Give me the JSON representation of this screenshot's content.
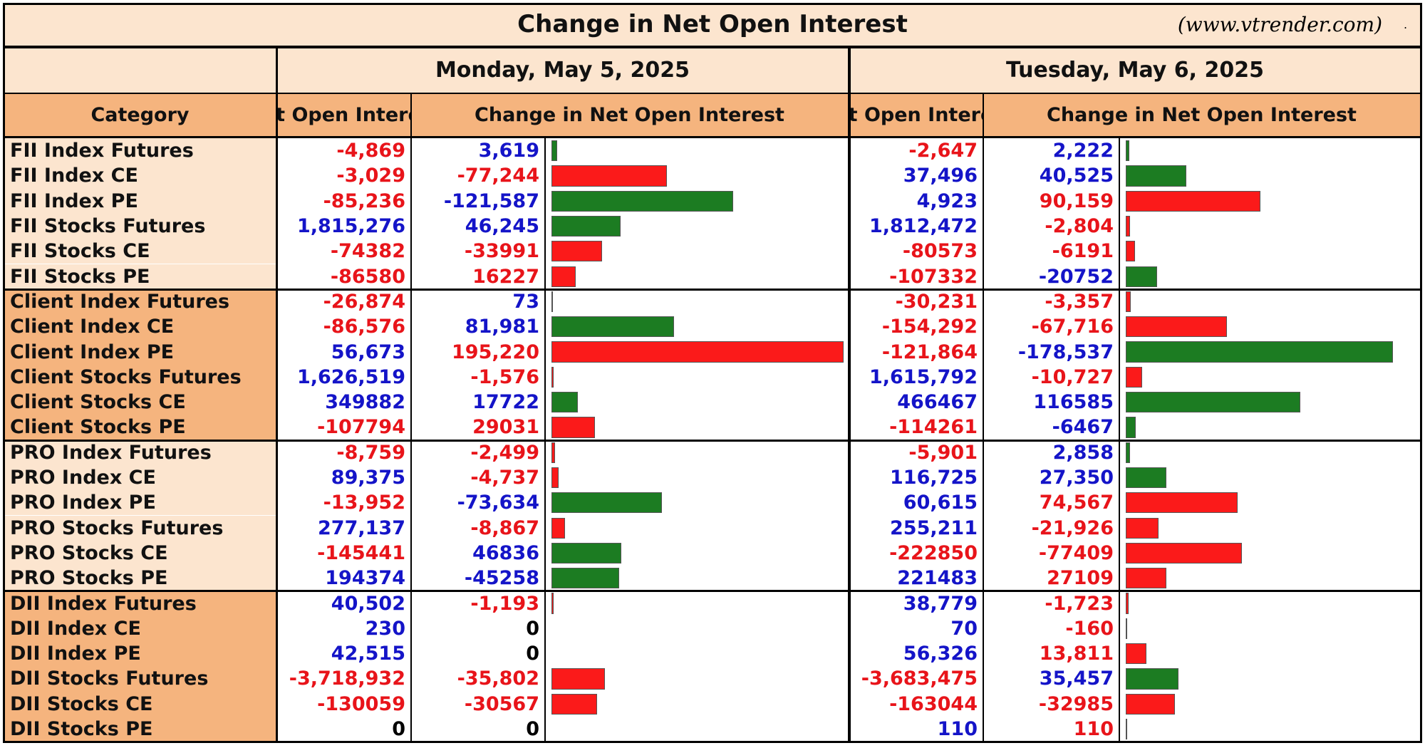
{
  "header": {
    "title": "Change in Net Open Interest",
    "source": "(www.vtrender.com)",
    "suffix": "."
  },
  "days": [
    "Monday, May 5, 2025",
    "Tuesday, May 6, 2025"
  ],
  "columns": {
    "category": "Category",
    "oi": "Net Open Interest",
    "change": "Change in Net Open Interest"
  },
  "groups": [
    {
      "shade": "light",
      "rows": [
        {
          "category": "FII Index Futures",
          "days": [
            {
              "oi": "-4,869",
              "oi_color": "red",
              "change": {
                "value": 3619,
                "label": "3,619"
              },
              "color": "blue",
              "bar": "green"
            },
            {
              "oi": "-2,647",
              "oi_color": "red",
              "change": {
                "value": 2222,
                "label": "2,222"
              },
              "color": "blue",
              "bar": "green"
            }
          ]
        },
        {
          "category": "FII Index CE",
          "days": [
            {
              "oi": "-3,029",
              "oi_color": "red",
              "change": {
                "value": -77244,
                "label": "-77,244"
              },
              "color": "red",
              "bar": "red"
            },
            {
              "oi": "37,496",
              "oi_color": "blue",
              "change": {
                "value": 40525,
                "label": "40,525"
              },
              "color": "blue",
              "bar": "green"
            }
          ]
        },
        {
          "category": "FII Index PE",
          "days": [
            {
              "oi": "-85,236",
              "oi_color": "red",
              "change": {
                "value": -121587,
                "label": "-121,587"
              },
              "color": "blue",
              "bar": "green"
            },
            {
              "oi": "4,923",
              "oi_color": "blue",
              "change": {
                "value": 90159,
                "label": "90,159"
              },
              "color": "red",
              "bar": "red"
            }
          ]
        },
        {
          "category": "FII Stocks Futures",
          "days": [
            {
              "oi": "1,815,276",
              "oi_color": "blue",
              "change": {
                "value": 46245,
                "label": "46,245"
              },
              "color": "blue",
              "bar": "green"
            },
            {
              "oi": "1,812,472",
              "oi_color": "blue",
              "change": {
                "value": -2804,
                "label": "-2,804"
              },
              "color": "red",
              "bar": "red"
            }
          ]
        },
        {
          "category": "FII Stocks CE",
          "days": [
            {
              "oi": "-74382",
              "oi_color": "red",
              "change": {
                "value": -33991,
                "label": "-33991"
              },
              "color": "red",
              "bar": "red"
            },
            {
              "oi": "-80573",
              "oi_color": "red",
              "change": {
                "value": -6191,
                "label": "-6191"
              },
              "color": "red",
              "bar": "red"
            }
          ]
        },
        {
          "category": "FII Stocks PE",
          "days": [
            {
              "oi": "-86580",
              "oi_color": "red",
              "change": {
                "value": 16227,
                "label": "16227"
              },
              "color": "red",
              "bar": "red"
            },
            {
              "oi": "-107332",
              "oi_color": "red",
              "change": {
                "value": -20752,
                "label": "-20752"
              },
              "color": "blue",
              "bar": "green"
            }
          ]
        }
      ]
    },
    {
      "shade": "dark",
      "rows": [
        {
          "category": "Client Index Futures",
          "days": [
            {
              "oi": "-26,874",
              "oi_color": "red",
              "change": {
                "value": 73,
                "label": "73"
              },
              "color": "blue",
              "bar": "green"
            },
            {
              "oi": "-30,231",
              "oi_color": "red",
              "change": {
                "value": -3357,
                "label": "-3,357"
              },
              "color": "red",
              "bar": "red"
            }
          ]
        },
        {
          "category": "Client Index CE",
          "days": [
            {
              "oi": "-86,576",
              "oi_color": "red",
              "change": {
                "value": 81981,
                "label": "81,981"
              },
              "color": "blue",
              "bar": "green"
            },
            {
              "oi": "-154,292",
              "oi_color": "red",
              "change": {
                "value": -67716,
                "label": "-67,716"
              },
              "color": "red",
              "bar": "red"
            }
          ]
        },
        {
          "category": "Client Index PE",
          "days": [
            {
              "oi": "56,673",
              "oi_color": "blue",
              "change": {
                "value": 195220,
                "label": "195,220"
              },
              "color": "red",
              "bar": "red"
            },
            {
              "oi": "-121,864",
              "oi_color": "red",
              "change": {
                "value": -178537,
                "label": "-178,537"
              },
              "color": "blue",
              "bar": "green"
            }
          ]
        },
        {
          "category": "Client Stocks Futures",
          "days": [
            {
              "oi": "1,626,519",
              "oi_color": "blue",
              "change": {
                "value": -1576,
                "label": "-1,576"
              },
              "color": "red",
              "bar": "red"
            },
            {
              "oi": "1,615,792",
              "oi_color": "blue",
              "change": {
                "value": -10727,
                "label": "-10,727"
              },
              "color": "red",
              "bar": "red"
            }
          ]
        },
        {
          "category": "Client Stocks CE",
          "days": [
            {
              "oi": "349882",
              "oi_color": "blue",
              "change": {
                "value": 17722,
                "label": "17722"
              },
              "color": "blue",
              "bar": "green"
            },
            {
              "oi": "466467",
              "oi_color": "blue",
              "change": {
                "value": 116585,
                "label": "116585"
              },
              "color": "blue",
              "bar": "green"
            }
          ]
        },
        {
          "category": "Client Stocks PE",
          "days": [
            {
              "oi": "-107794",
              "oi_color": "red",
              "change": {
                "value": 29031,
                "label": "29031"
              },
              "color": "red",
              "bar": "red"
            },
            {
              "oi": "-114261",
              "oi_color": "red",
              "change": {
                "value": -6467,
                "label": "-6467"
              },
              "color": "blue",
              "bar": "green"
            }
          ]
        }
      ]
    },
    {
      "shade": "light",
      "rows": [
        {
          "category": "PRO Index Futures",
          "days": [
            {
              "oi": "-8,759",
              "oi_color": "red",
              "change": {
                "value": -2499,
                "label": "-2,499"
              },
              "color": "red",
              "bar": "red"
            },
            {
              "oi": "-5,901",
              "oi_color": "red",
              "change": {
                "value": 2858,
                "label": "2,858"
              },
              "color": "blue",
              "bar": "green"
            }
          ]
        },
        {
          "category": "PRO Index CE",
          "days": [
            {
              "oi": "89,375",
              "oi_color": "blue",
              "change": {
                "value": -4737,
                "label": "-4,737"
              },
              "color": "red",
              "bar": "red"
            },
            {
              "oi": "116,725",
              "oi_color": "blue",
              "change": {
                "value": 27350,
                "label": "27,350"
              },
              "color": "blue",
              "bar": "green"
            }
          ]
        },
        {
          "category": "PRO Index PE",
          "days": [
            {
              "oi": "-13,952",
              "oi_color": "red",
              "change": {
                "value": -73634,
                "label": "-73,634"
              },
              "color": "blue",
              "bar": "green"
            },
            {
              "oi": "60,615",
              "oi_color": "blue",
              "change": {
                "value": 74567,
                "label": "74,567"
              },
              "color": "red",
              "bar": "red"
            }
          ]
        },
        {
          "category": "PRO Stocks Futures",
          "days": [
            {
              "oi": "277,137",
              "oi_color": "blue",
              "change": {
                "value": -8867,
                "label": "-8,867"
              },
              "color": "red",
              "bar": "red"
            },
            {
              "oi": "255,211",
              "oi_color": "blue",
              "change": {
                "value": -21926,
                "label": "-21,926"
              },
              "color": "red",
              "bar": "red"
            }
          ]
        },
        {
          "category": "PRO Stocks CE",
          "days": [
            {
              "oi": "-145441",
              "oi_color": "red",
              "change": {
                "value": 46836,
                "label": "46836"
              },
              "color": "blue",
              "bar": "green"
            },
            {
              "oi": "-222850",
              "oi_color": "red",
              "change": {
                "value": -77409,
                "label": "-77409"
              },
              "color": "red",
              "bar": "red"
            }
          ]
        },
        {
          "category": "PRO Stocks PE",
          "days": [
            {
              "oi": "194374",
              "oi_color": "blue",
              "change": {
                "value": -45258,
                "label": "-45258"
              },
              "color": "blue",
              "bar": "green"
            },
            {
              "oi": "221483",
              "oi_color": "blue",
              "change": {
                "value": 27109,
                "label": "27109"
              },
              "color": "red",
              "bar": "red"
            }
          ]
        }
      ]
    },
    {
      "shade": "dark",
      "rows": [
        {
          "category": "DII Index Futures",
          "days": [
            {
              "oi": "40,502",
              "oi_color": "blue",
              "change": {
                "value": -1193,
                "label": "-1,193"
              },
              "color": "red",
              "bar": "red"
            },
            {
              "oi": "38,779",
              "oi_color": "blue",
              "change": {
                "value": -1723,
                "label": "-1,723"
              },
              "color": "red",
              "bar": "red"
            }
          ]
        },
        {
          "category": "DII Index CE",
          "days": [
            {
              "oi": "230",
              "oi_color": "blue",
              "change": {
                "value": 0,
                "label": "0"
              },
              "color": "black"
            },
            {
              "oi": "70",
              "oi_color": "blue",
              "change": {
                "value": -160,
                "label": "-160"
              },
              "color": "red",
              "bar": "red"
            }
          ]
        },
        {
          "category": "DII Index PE",
          "days": [
            {
              "oi": "42,515",
              "oi_color": "blue",
              "change": {
                "value": 0,
                "label": "0"
              },
              "color": "black"
            },
            {
              "oi": "56,326",
              "oi_color": "blue",
              "change": {
                "value": 13811,
                "label": "13,811"
              },
              "color": "red",
              "bar": "red"
            }
          ]
        },
        {
          "category": "DII Stocks Futures",
          "days": [
            {
              "oi": "-3,718,932",
              "oi_color": "red",
              "change": {
                "value": -35802,
                "label": "-35,802"
              },
              "color": "red",
              "bar": "red"
            },
            {
              "oi": "-3,683,475",
              "oi_color": "red",
              "change": {
                "value": 35457,
                "label": "35,457"
              },
              "color": "blue",
              "bar": "green"
            }
          ]
        },
        {
          "category": "DII Stocks CE",
          "days": [
            {
              "oi": "-130059",
              "oi_color": "red",
              "change": {
                "value": -30567,
                "label": "-30567"
              },
              "color": "red",
              "bar": "red"
            },
            {
              "oi": "-163044",
              "oi_color": "red",
              "change": {
                "value": -32985,
                "label": "-32985"
              },
              "color": "red",
              "bar": "red"
            }
          ]
        },
        {
          "category": "DII Stocks PE",
          "days": [
            {
              "oi": "0",
              "oi_color": "black",
              "change": {
                "value": 0,
                "label": "0"
              },
              "color": "black"
            },
            {
              "oi": "110",
              "oi_color": "blue",
              "change": {
                "value": 110,
                "label": "110"
              },
              "color": "red",
              "bar": "red"
            }
          ]
        }
      ]
    }
  ]
}
